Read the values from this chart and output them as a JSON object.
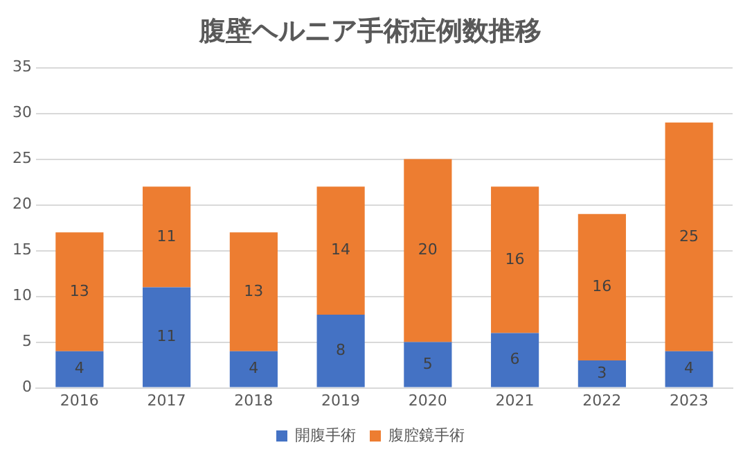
{
  "chart_data": {
    "type": "bar",
    "title": "腹壁ヘルニア手術症例数推移",
    "categories": [
      "2016",
      "2017",
      "2018",
      "2019",
      "2020",
      "2021",
      "2022",
      "2023"
    ],
    "series": [
      {
        "name": "開腹手術",
        "color": "#4472c4",
        "values": [
          4,
          11,
          4,
          8,
          5,
          6,
          3,
          4
        ]
      },
      {
        "name": "腹腔鏡手術",
        "color": "#ed7d31",
        "values": [
          13,
          11,
          13,
          14,
          20,
          16,
          16,
          25
        ]
      }
    ],
    "stacked": true,
    "ylim": [
      0,
      35
    ],
    "yticks": [
      0,
      5,
      10,
      15,
      20,
      25,
      30,
      35
    ],
    "grid": "y",
    "legend": "bottom",
    "data_labels": true
  }
}
